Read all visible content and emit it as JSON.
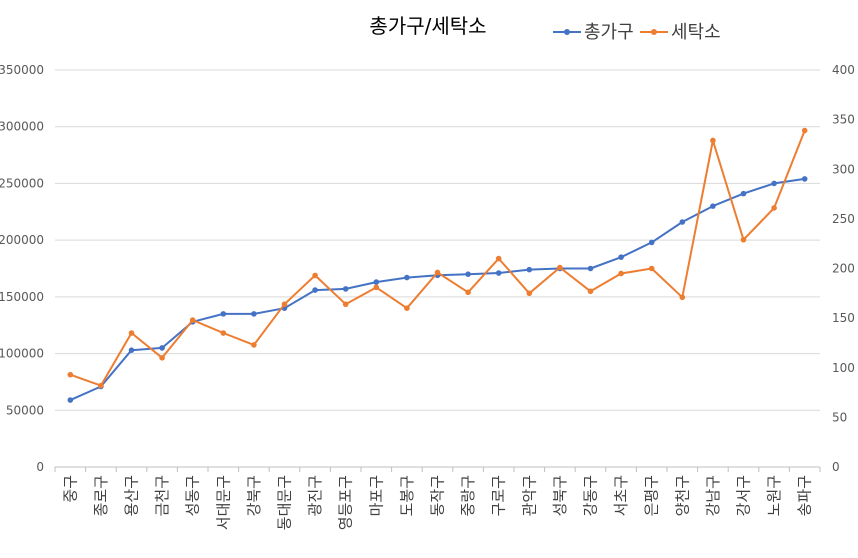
{
  "chart_data": {
    "type": "line",
    "title": "총가구/세탁소",
    "legend_position": "top-right",
    "grid": true,
    "categories": [
      "중구",
      "종로구",
      "용산구",
      "금천구",
      "성동구",
      "서대문구",
      "강북구",
      "동대문구",
      "광진구",
      "영등포구",
      "마포구",
      "도봉구",
      "동작구",
      "중랑구",
      "구로구",
      "관악구",
      "성북구",
      "강동구",
      "서초구",
      "은평구",
      "양천구",
      "강남구",
      "강서구",
      "노원구",
      "송파구"
    ],
    "y_left": {
      "ticks": [
        "0",
        "50000",
        "100000",
        "150000",
        "200000",
        "250000",
        "300000",
        "350000"
      ],
      "ylim": [
        0,
        350000
      ]
    },
    "y_right": {
      "ticks": [
        "0",
        "50",
        "100",
        "150",
        "200",
        "250",
        "300",
        "350",
        "400"
      ],
      "ylim": [
        0,
        400
      ]
    },
    "series": [
      {
        "name": "총가구",
        "axis": "left",
        "color": "#4472C4",
        "values": [
          59000,
          71000,
          103000,
          105000,
          128000,
          135000,
          135000,
          140000,
          156000,
          157000,
          163000,
          167000,
          169000,
          170000,
          171000,
          174000,
          175000,
          175000,
          185000,
          198000,
          216000,
          230000,
          241000,
          250000,
          254000
        ]
      },
      {
        "name": "세탁소",
        "axis": "right",
        "color": "#ED7D31",
        "values": [
          93,
          82,
          135,
          110,
          148,
          135,
          123,
          164,
          193,
          164,
          181,
          160,
          196,
          176,
          210,
          175,
          201,
          177,
          195,
          200,
          171,
          329,
          229,
          261,
          339
        ]
      }
    ]
  }
}
